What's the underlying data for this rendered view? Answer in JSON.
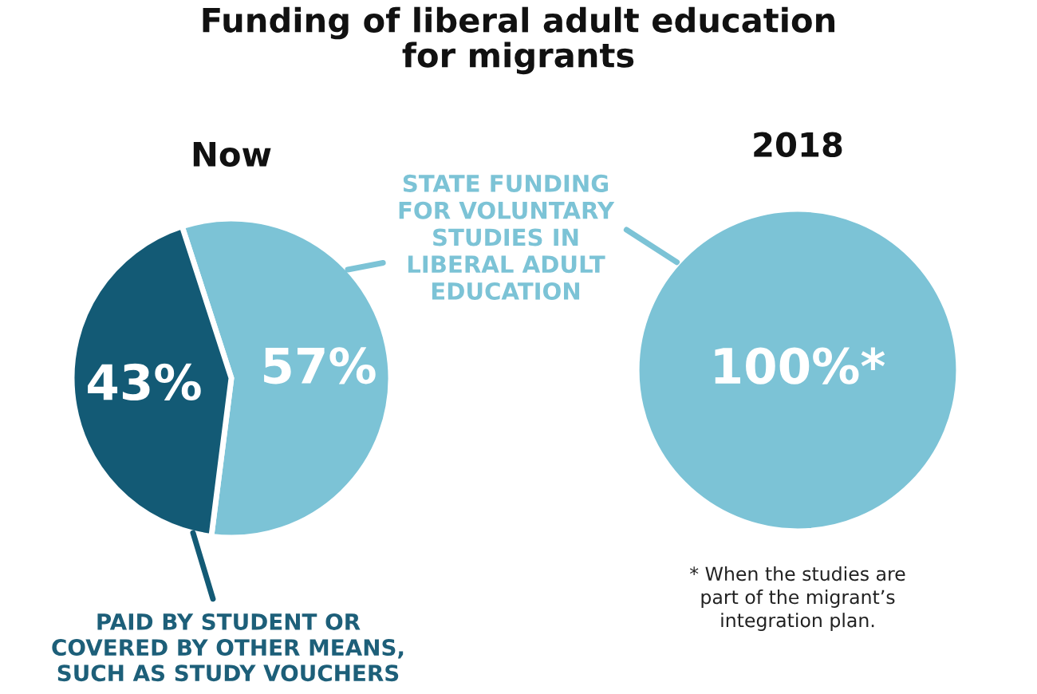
{
  "chart_data": [
    {
      "type": "pie",
      "title": "Funding of liberal adult education\nfor migrants",
      "subtitle": "Now",
      "categories": [
        "STATE FUNDING\nFOR VOLUNTARY\nSTUDIES IN\nLIBERAL ADULT\nEDUCATION",
        "PAID BY STUDENT OR\nCOVERED BY OTHER MEANS,\nSUCH AS STUDY VOUCHERS"
      ],
      "values": [
        57,
        43
      ],
      "colors": [
        "#7cc3d6",
        "#135a75"
      ],
      "value_labels": [
        "57%",
        "43%"
      ]
    },
    {
      "type": "pie",
      "subtitle": "2018",
      "categories": [
        null
      ],
      "values": [
        100
      ],
      "colors": [
        "#7cc3d6"
      ],
      "value_labels": [
        "100%*"
      ],
      "annotations": [
        "* When the studies are\npart of the migrant’s\nintegration plan."
      ]
    }
  ]
}
